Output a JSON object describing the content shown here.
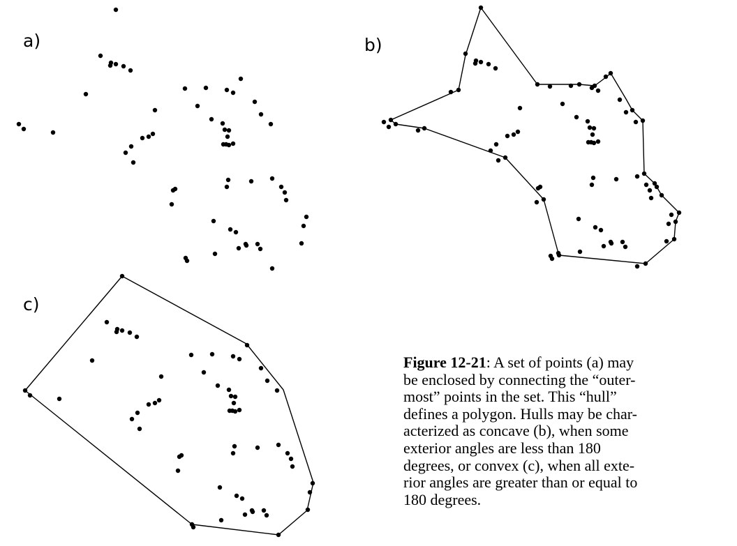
{
  "panels": [
    {
      "id": "a",
      "label": "a)"
    },
    {
      "id": "b",
      "label": "b)"
    },
    {
      "id": "c",
      "label": "c)"
    }
  ],
  "caption": {
    "figure_ref": "Figure 12-21",
    "lines": [
      ": A set of points (a) may",
      "be enclosed by connecting the “outer-",
      "most” points in the set. This “hull”",
      "defines a polygon. Hulls may be char-",
      "acterized as concave (b), when some",
      "exterior angles are less than 180",
      "degrees, or convex (c), when all exte-",
      "rior angles are greater than or equal to",
      "180 degrees."
    ]
  },
  "colors": {
    "background": "#ffffff",
    "ink": "#000000"
  }
}
